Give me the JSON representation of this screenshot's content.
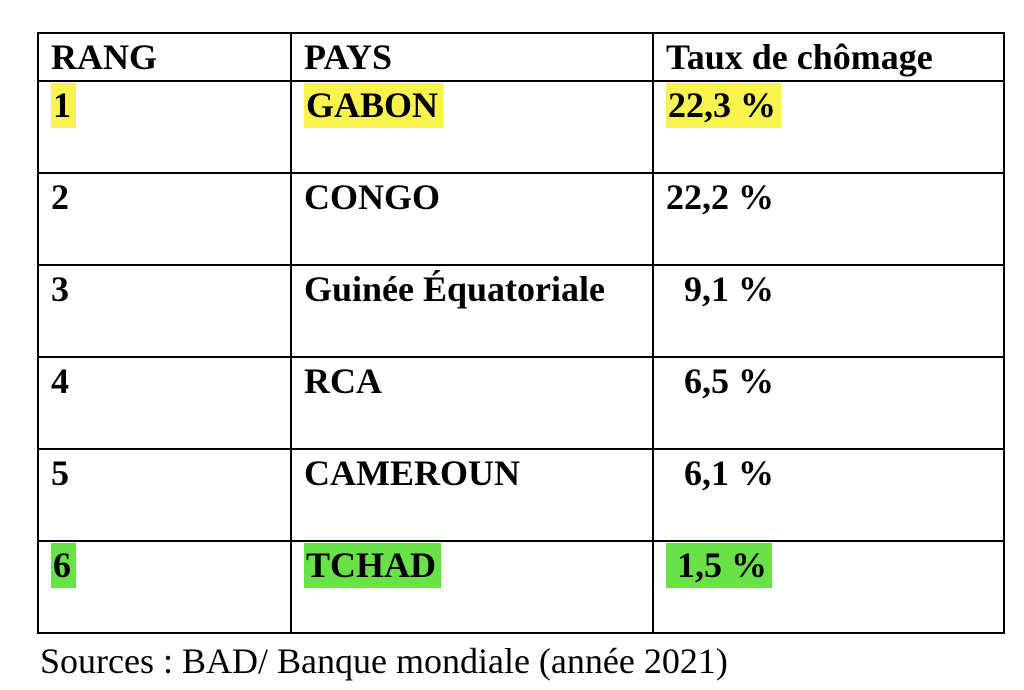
{
  "colors": {
    "hl-yellow": "#f9f34d",
    "hl-green": "#69e149",
    "border": "#000000",
    "text": "#000000",
    "background": "#ffffff"
  },
  "table": {
    "headers": [
      "RANG",
      "PAYS",
      "Taux de chômage"
    ],
    "rows": [
      {
        "rank": "1",
        "country": "GABON",
        "rate": "22,3 %",
        "highlight": "yellow"
      },
      {
        "rank": "2",
        "country": "CONGO",
        "rate": "22,2 %",
        "highlight": "none"
      },
      {
        "rank": "3",
        "country": "Guinée Équatoriale",
        "rate": "  9,1 %",
        "highlight": "none"
      },
      {
        "rank": "4",
        "country": "RCA",
        "rate": "  6,5 %",
        "highlight": "none"
      },
      {
        "rank": "5",
        "country": "CAMEROUN",
        "rate": "  6,1 %",
        "highlight": "none"
      },
      {
        "rank": "6",
        "country": "TCHAD",
        "rate": " 1,5 %",
        "highlight": "green"
      }
    ]
  },
  "footer": {
    "sources": "Sources : BAD/ Banque mondiale (année 2021)"
  },
  "chart_data": {
    "type": "table",
    "title": "Taux de chômage",
    "columns": [
      "RANG",
      "PAYS",
      "Taux de chômage"
    ],
    "rows": [
      [
        "1",
        "GABON",
        "22,3 %"
      ],
      [
        "2",
        "CONGO",
        "22,2 %"
      ],
      [
        "3",
        "Guinée Équatoriale",
        "9,1 %"
      ],
      [
        "4",
        "RCA",
        "6,5 %"
      ],
      [
        "5",
        "CAMEROUN",
        "6,1 %"
      ],
      [
        "6",
        "TCHAD",
        "1,5 %"
      ]
    ],
    "values_numeric_percent": [
      22.3,
      22.2,
      9.1,
      6.5,
      6.1,
      1.5
    ],
    "highlighted_rows": {
      "yellow": "GABON",
      "green": "TCHAD"
    },
    "source": "BAD/ Banque mondiale (année 2021)"
  }
}
